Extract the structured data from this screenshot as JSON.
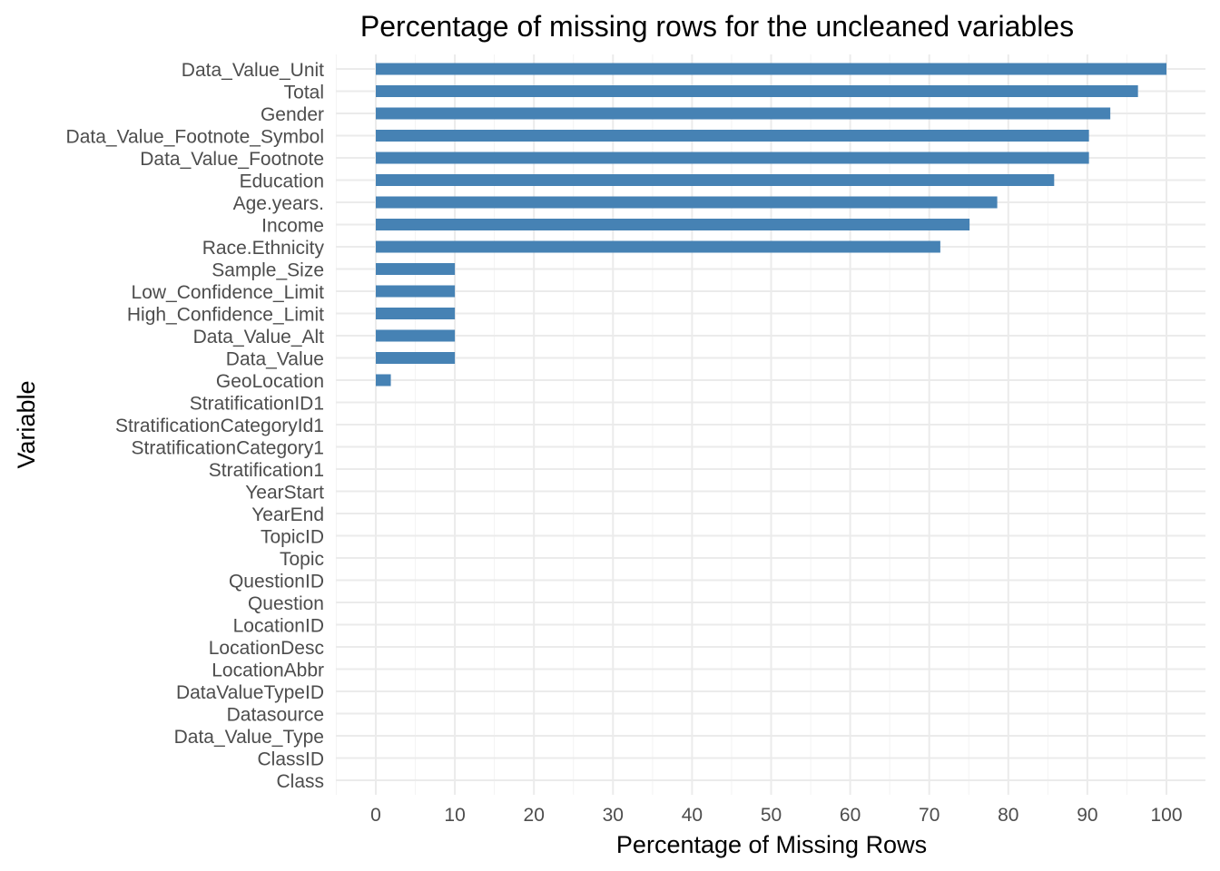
{
  "chart_data": {
    "type": "bar",
    "orientation": "horizontal",
    "title": "Percentage of missing rows for the uncleaned variables",
    "xlabel": "Percentage of Missing Rows",
    "ylabel": "Variable",
    "xlim": [
      0,
      100
    ],
    "xticks": [
      "0",
      "10",
      "20",
      "30",
      "40",
      "50",
      "60",
      "70",
      "80",
      "90",
      "100"
    ],
    "grid": true,
    "legend": "none",
    "bar_color": "#4682b4",
    "categories": [
      "Data_Value_Unit",
      "Total",
      "Gender",
      "Data_Value_Footnote_Symbol",
      "Data_Value_Footnote",
      "Education",
      "Age.years.",
      "Income",
      "Race.Ethnicity",
      "Sample_Size",
      "Low_Confidence_Limit",
      "High_Confidence_Limit",
      "Data_Value_Alt",
      "Data_Value",
      "GeoLocation",
      "StratificationID1",
      "StratificationCategoryId1",
      "StratificationCategory1",
      "Stratification1",
      "YearStart",
      "YearEnd",
      "TopicID",
      "Topic",
      "QuestionID",
      "Question",
      "LocationID",
      "LocationDesc",
      "LocationAbbr",
      "DataValueTypeID",
      "Datasource",
      "Data_Value_Type",
      "ClassID",
      "Class"
    ],
    "values": [
      100,
      96.4,
      92.9,
      90.2,
      90.2,
      85.8,
      78.6,
      75.1,
      71.4,
      10,
      10,
      10,
      10,
      10,
      1.9,
      0,
      0,
      0,
      0,
      0,
      0,
      0,
      0,
      0,
      0,
      0,
      0,
      0,
      0,
      0,
      0,
      0,
      0
    ]
  }
}
